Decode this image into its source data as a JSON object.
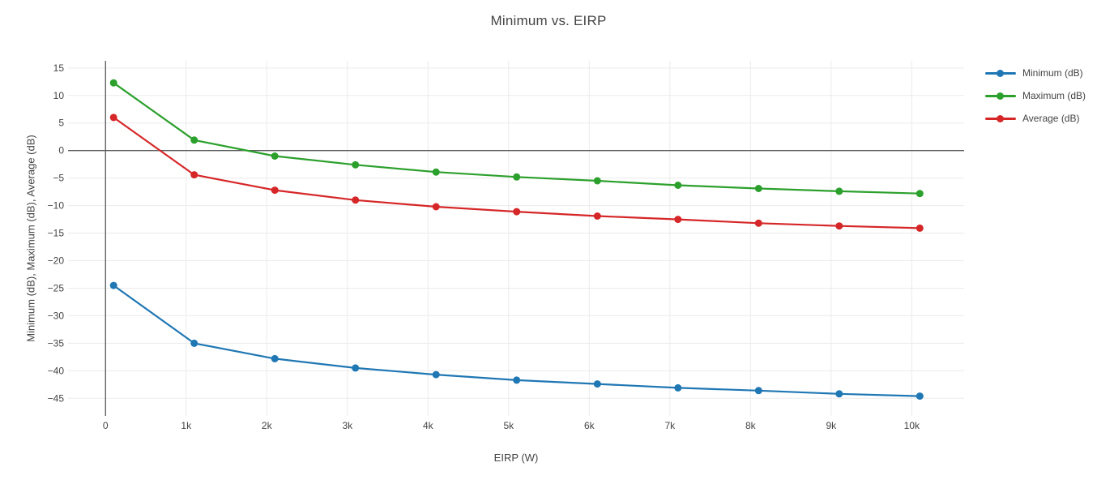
{
  "chart_data": {
    "type": "line",
    "title": "Minimum vs. EIRP",
    "xlabel": "EIRP (W)",
    "ylabel": "Minimum (dB), Maximum (dB), Average (dB)",
    "x": [
      100,
      1100,
      2100,
      3100,
      4100,
      5100,
      6100,
      7100,
      8100,
      9100,
      10100
    ],
    "series": [
      {
        "name": "Minimum (dB)",
        "color": "#1f77b4",
        "values": [
          -24.5,
          -35.0,
          -37.8,
          -39.5,
          -40.7,
          -41.7,
          -42.4,
          -43.1,
          -43.6,
          -44.2,
          -44.6
        ]
      },
      {
        "name": "Maximum (dB)",
        "color": "#2ca02c",
        "values": [
          12.3,
          1.9,
          -1.0,
          -2.6,
          -3.9,
          -4.8,
          -5.5,
          -6.3,
          -6.9,
          -7.4,
          -7.8
        ]
      },
      {
        "name": "Average (dB)",
        "color": "#d62728",
        "values": [
          6.0,
          -4.4,
          -7.2,
          -9.0,
          -10.2,
          -11.1,
          -11.9,
          -12.5,
          -13.2,
          -13.7,
          -14.1
        ]
      }
    ],
    "x_ticks": {
      "values": [
        0,
        1000,
        2000,
        3000,
        4000,
        5000,
        6000,
        7000,
        8000,
        9000,
        10000
      ],
      "labels": [
        "0",
        "1k",
        "2k",
        "3k",
        "4k",
        "5k",
        "6k",
        "7k",
        "8k",
        "9k",
        "10k"
      ]
    },
    "y_ticks": {
      "values": [
        15,
        10,
        5,
        0,
        -5,
        -10,
        -15,
        -20,
        -25,
        -30,
        -35,
        -40,
        -45
      ],
      "labels": [
        "15",
        "10",
        "5",
        "0",
        "−5",
        "−10",
        "−15",
        "−20",
        "−25",
        "−30",
        "−35",
        "−40",
        "−45"
      ]
    },
    "xlim": [
      -465,
      10650
    ],
    "ylim": [
      -48.2,
      16.3
    ],
    "grid": true,
    "legend_position": "right",
    "colors": {
      "background": "#ffffff",
      "grid": "#ebebeb",
      "zeroline": "#5a5a5a",
      "tick_text": "#444444",
      "title_text": "#444444"
    }
  }
}
